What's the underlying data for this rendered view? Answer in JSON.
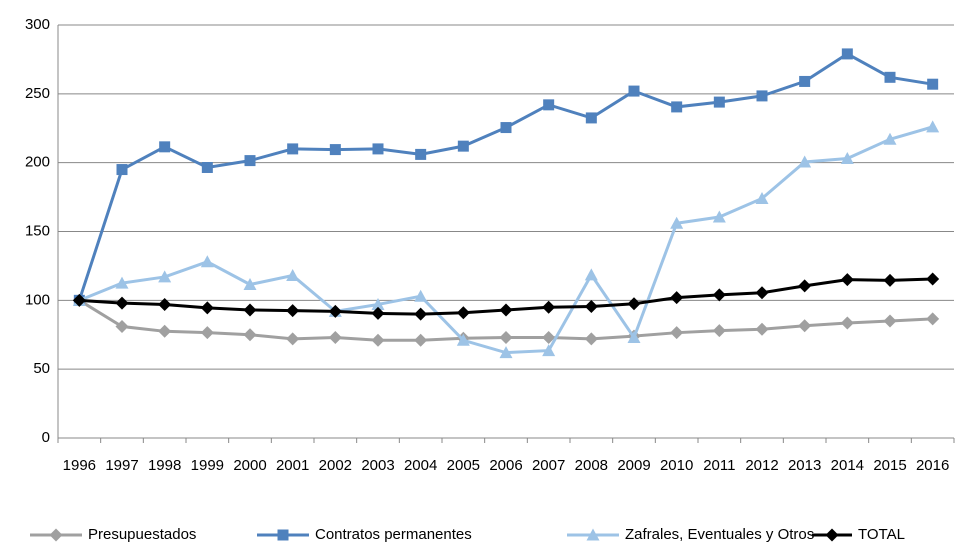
{
  "chart_data": {
    "type": "line",
    "categories": [
      "1996",
      "1997",
      "1998",
      "1999",
      "2000",
      "2001",
      "2002",
      "2003",
      "2004",
      "2005",
      "2006",
      "2007",
      "2008",
      "2009",
      "2010",
      "2011",
      "2012",
      "2013",
      "2014",
      "2015",
      "2016"
    ],
    "series": [
      {
        "name": "Presupuestados",
        "color": "#a0a0a0",
        "marker": "diamond",
        "values": [
          100,
          81,
          77.5,
          76.5,
          75,
          72,
          73,
          71,
          71,
          72.5,
          73,
          73,
          72,
          74,
          76.5,
          78,
          79,
          81.5,
          83.5,
          85,
          86.5
        ]
      },
      {
        "name": "Contratos permanentes",
        "color": "#4f81bd",
        "marker": "square",
        "values": [
          100,
          195,
          211.5,
          196.5,
          201.5,
          210,
          209.5,
          210,
          206,
          212,
          225.5,
          242,
          232.5,
          252,
          240.5,
          244,
          248.5,
          259,
          279,
          262,
          257
        ]
      },
      {
        "name": "Zafrales, Eventuales y Otros",
        "color": "#9dc3e6",
        "marker": "triangle",
        "values": [
          100,
          112.5,
          117,
          128,
          111.5,
          118,
          92,
          97,
          103,
          71,
          62,
          63.5,
          118.5,
          73,
          156,
          160.5,
          174,
          200.5,
          203,
          217,
          226
        ]
      },
      {
        "name": "TOTAL",
        "color": "#000000",
        "marker": "diamond",
        "values": [
          100,
          98,
          97,
          94.5,
          93,
          92.5,
          92,
          90.5,
          90,
          91,
          93,
          95,
          95.5,
          97.5,
          102,
          104,
          105.5,
          110.5,
          115,
          114.5,
          115.5
        ]
      }
    ],
    "ylim": [
      0,
      300
    ],
    "yticks": [
      0,
      50,
      100,
      150,
      200,
      250,
      300
    ],
    "grid": true,
    "legend": "bottom"
  }
}
